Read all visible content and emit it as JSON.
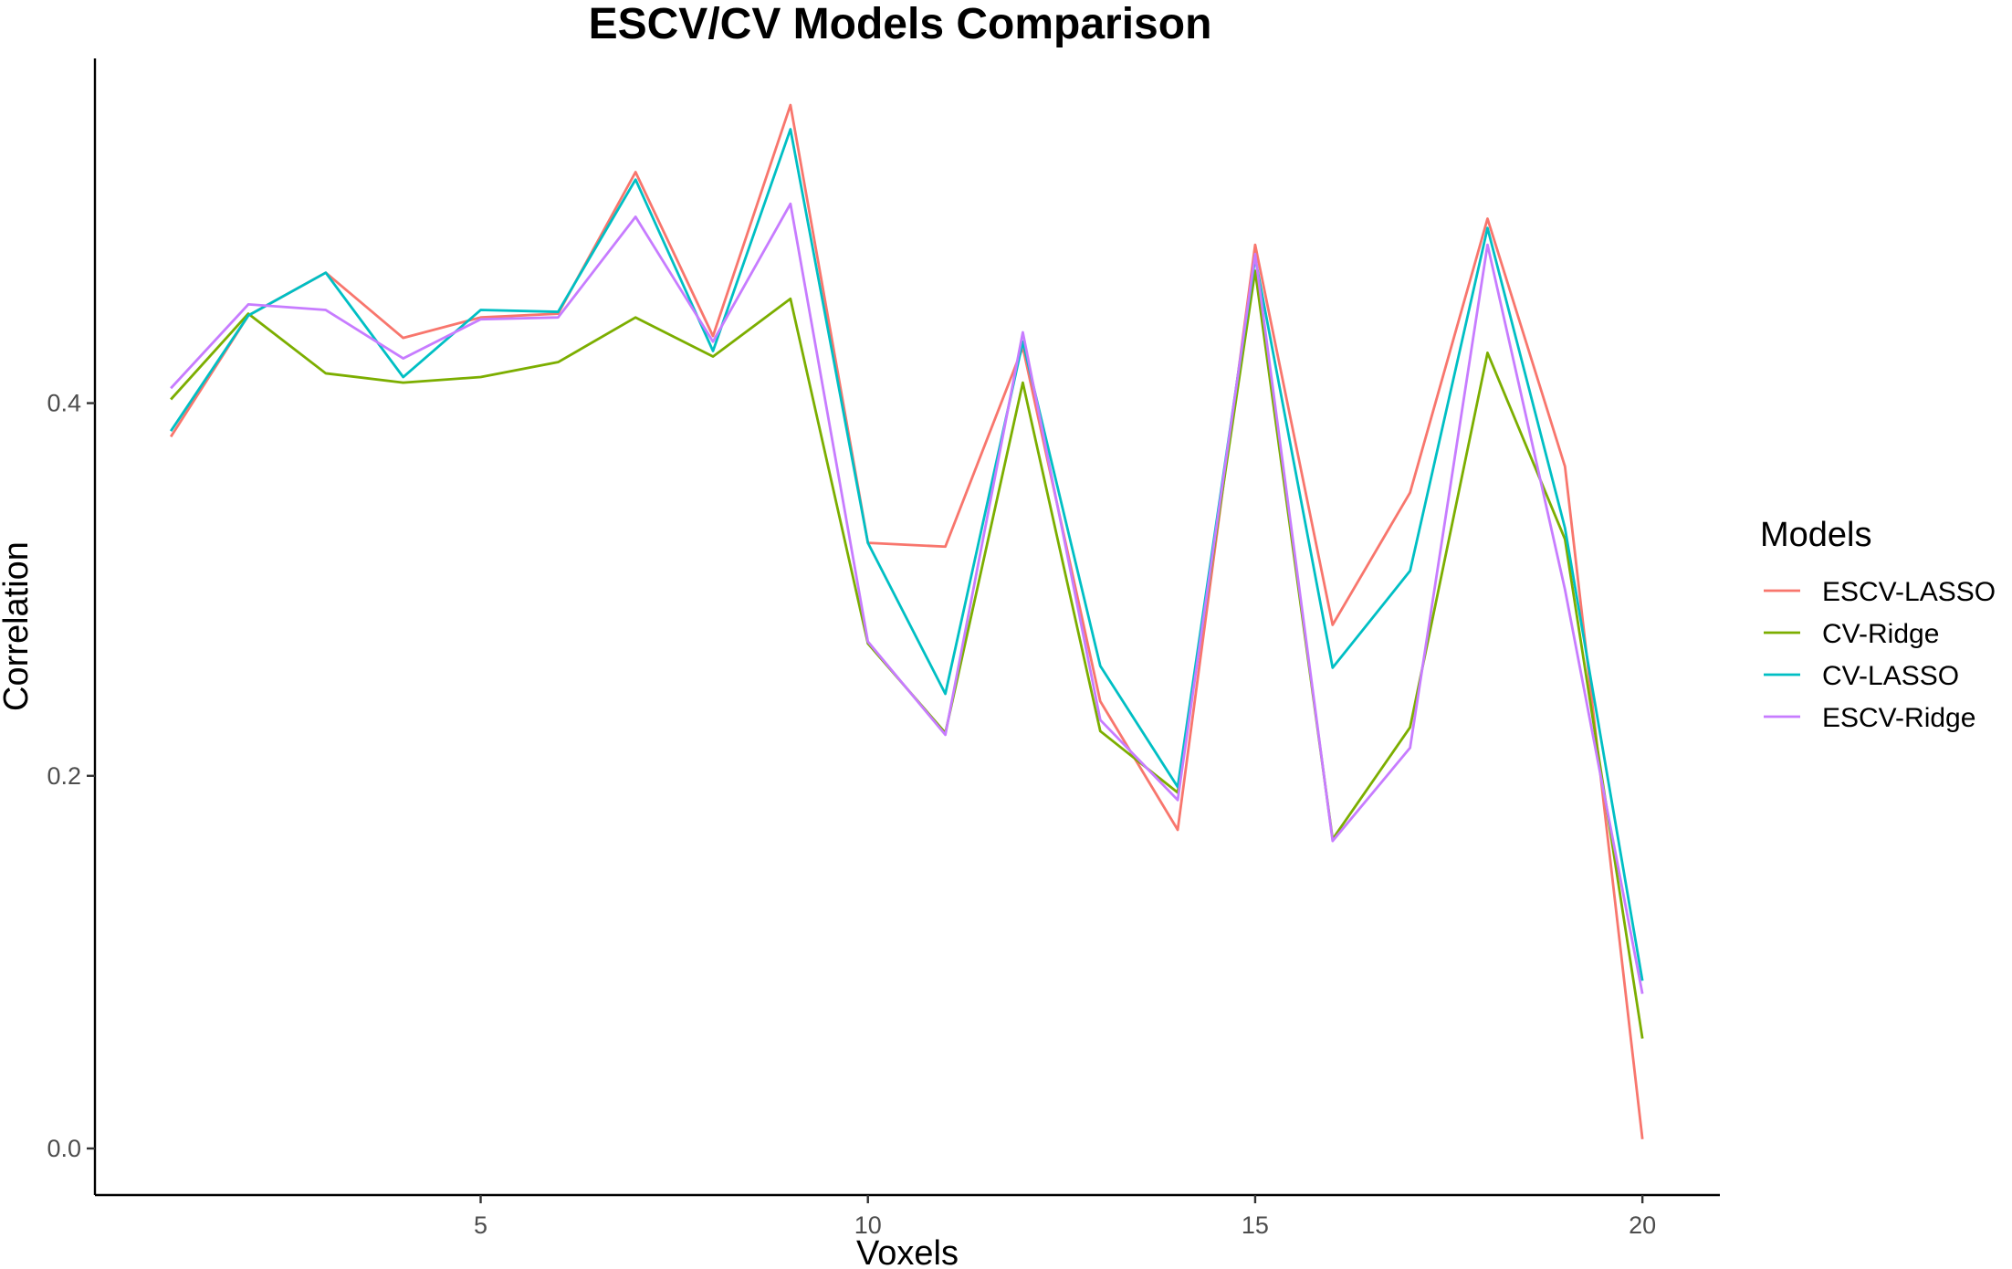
{
  "chart_data": {
    "type": "line",
    "title": "ESCV/CV Models Comparison",
    "xlabel": "Voxels",
    "ylabel": "Correlation",
    "x": [
      1,
      2,
      3,
      4,
      5,
      6,
      7,
      8,
      9,
      10,
      11,
      12,
      13,
      14,
      15,
      16,
      17,
      18,
      19,
      20
    ],
    "xlim": [
      0.02,
      21.0
    ],
    "ylim": [
      -0.025,
      0.585
    ],
    "x_ticks": [
      5,
      10,
      15,
      20
    ],
    "x_tick_labels": [
      "5",
      "10",
      "15",
      "20"
    ],
    "y_ticks": [
      0.0,
      0.2,
      0.4
    ],
    "y_tick_labels": [
      "0.0",
      "0.2",
      "0.4"
    ],
    "grid": false,
    "legend": {
      "title": "Models",
      "position": "right"
    },
    "series": [
      {
        "name": "ESCV-LASSO",
        "color": "#F8766D",
        "values": [
          0.382,
          0.447,
          0.47,
          0.435,
          0.446,
          0.448,
          0.524,
          0.436,
          0.56,
          0.325,
          0.323,
          0.43,
          0.24,
          0.171,
          0.485,
          0.281,
          0.352,
          0.499,
          0.366,
          0.005
        ]
      },
      {
        "name": "CV-Ridge",
        "color": "#7CAE00",
        "values": [
          0.402,
          0.448,
          0.416,
          0.411,
          0.414,
          0.422,
          0.446,
          0.425,
          0.456,
          0.271,
          0.223,
          0.411,
          0.224,
          0.191,
          0.471,
          0.166,
          0.226,
          0.427,
          0.327,
          0.059
        ]
      },
      {
        "name": "CV-LASSO",
        "color": "#00BFC4",
        "values": [
          0.385,
          0.447,
          0.47,
          0.414,
          0.45,
          0.449,
          0.52,
          0.428,
          0.547,
          0.325,
          0.244,
          0.433,
          0.259,
          0.194,
          0.478,
          0.258,
          0.31,
          0.494,
          0.333,
          0.09
        ]
      },
      {
        "name": "ESCV-Ridge",
        "color": "#C77CFF",
        "values": [
          0.408,
          0.453,
          0.45,
          0.424,
          0.445,
          0.446,
          0.5,
          0.433,
          0.507,
          0.272,
          0.222,
          0.438,
          0.23,
          0.187,
          0.48,
          0.165,
          0.215,
          0.485,
          0.3,
          0.083
        ]
      }
    ]
  }
}
